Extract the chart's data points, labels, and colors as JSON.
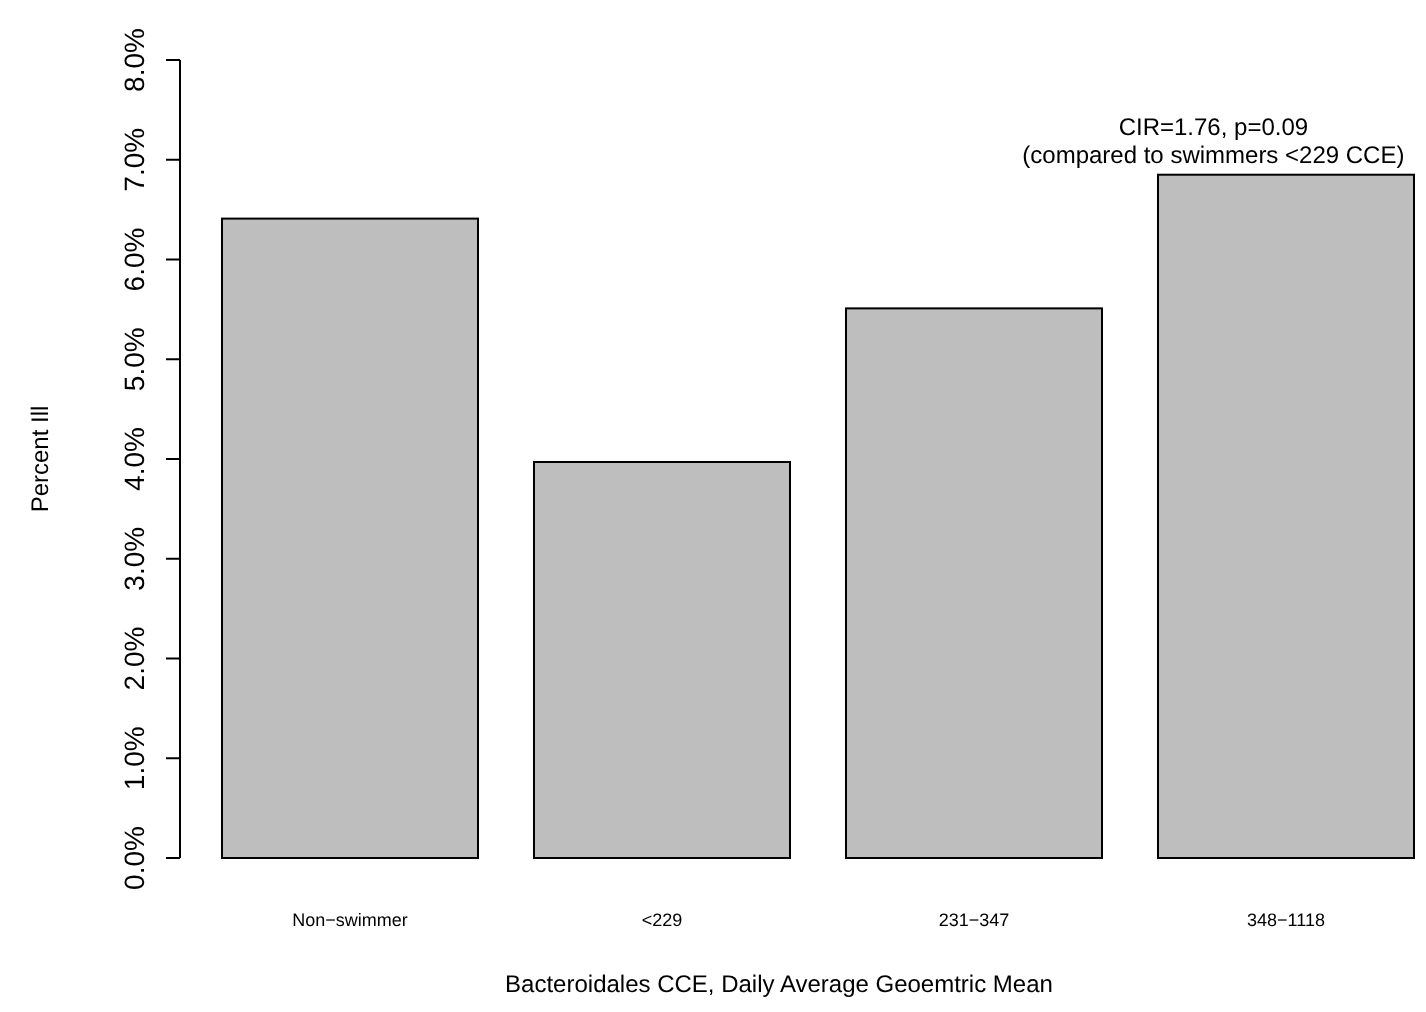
{
  "chart_data": {
    "type": "bar",
    "categories": [
      "Non−swimmer",
      "<229",
      "231−347",
      "348−1118"
    ],
    "values": [
      6.41,
      3.97,
      5.51,
      6.85
    ],
    "color": "#bebebe",
    "xlabel": "Bacteroidales CCE, Daily Average Geoemtric Mean",
    "ylabel": "Percent Ill",
    "ylim": [
      0,
      8
    ],
    "yticks": [
      {
        "value": 0,
        "label": "0.0%"
      },
      {
        "value": 1,
        "label": "1.0%"
      },
      {
        "value": 2,
        "label": "2.0%"
      },
      {
        "value": 3,
        "label": "3.0%"
      },
      {
        "value": 4,
        "label": "4.0%"
      },
      {
        "value": 5,
        "label": "5.0%"
      },
      {
        "value": 6,
        "label": "6.0%"
      },
      {
        "value": 7,
        "label": "7.0%"
      },
      {
        "value": 8,
        "label": "8.0%"
      }
    ],
    "annotations": [
      {
        "text": "CIR=1.76, p=0.09\n(compared to swimmers <229 CCE)",
        "x": "348−1118",
        "y": 6.85
      }
    ],
    "grid": false
  }
}
